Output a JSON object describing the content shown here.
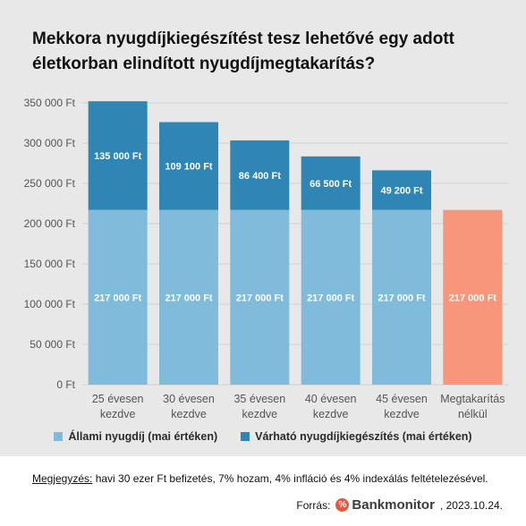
{
  "colors": {
    "state": "#80bbdb",
    "supplement": "#2f86b5",
    "no_savings": "#f7967b",
    "grid": "#cfcfcf",
    "axis_text": "#555555",
    "bar_label": "#ffffff"
  },
  "legend": {
    "state_label": "Állami nyugdíj (mai értéken)",
    "supplement_label": "Várható nyugdíjkiegészítés (mai értéken)"
  },
  "note": {
    "label": "Megjegyzés:",
    "text": " havi 30 ezer Ft befizetés, 7% hozam, 4% infláció és 4% indexálás feltételezésével."
  },
  "source": {
    "prefix": "Forrás:",
    "logo_mark": "%",
    "logo_text": "Bankmonitor",
    "date": ", 2023.10.24."
  },
  "chart_data": {
    "type": "bar",
    "stacked": true,
    "title": "Mekkora nyugdíjkiegészítést tesz lehetővé egy adott életkorban elindított nyugdíjmegtakarítás?",
    "categories": [
      [
        "25 évesen",
        "kezdve"
      ],
      [
        "30 évesen",
        "kezdve"
      ],
      [
        "35 évesen",
        "kezdve"
      ],
      [
        "40 évesen",
        "kezdve"
      ],
      [
        "45 évesen",
        "kezdve"
      ],
      [
        "Megtakarítás",
        "nélkül"
      ]
    ],
    "series": [
      {
        "name": "Állami nyugdíj (mai értéken)",
        "values": [
          217000,
          217000,
          217000,
          217000,
          217000,
          217000
        ],
        "labels": [
          "217 000 Ft",
          "217 000 Ft",
          "217 000 Ft",
          "217 000 Ft",
          "217 000 Ft",
          "217 000 Ft"
        ]
      },
      {
        "name": "Várható nyugdíjkiegészítés (mai értéken)",
        "values": [
          135000,
          109100,
          86400,
          66500,
          49200,
          0
        ],
        "labels": [
          "135 000 Ft",
          "109 100 Ft",
          "86 400 Ft",
          "66 500 Ft",
          "49 200 Ft",
          ""
        ]
      }
    ],
    "highlight_last_category": true,
    "ylim": [
      0,
      350000
    ],
    "yticks": [
      0,
      50000,
      100000,
      150000,
      200000,
      250000,
      300000,
      350000
    ],
    "ytick_labels": [
      "0 Ft",
      "50 000 Ft",
      "100 000 Ft",
      "150 000 Ft",
      "200 000 Ft",
      "250 000 Ft",
      "300 000 Ft",
      "350 000 Ft"
    ],
    "grid": true,
    "legend_position": "bottom"
  }
}
